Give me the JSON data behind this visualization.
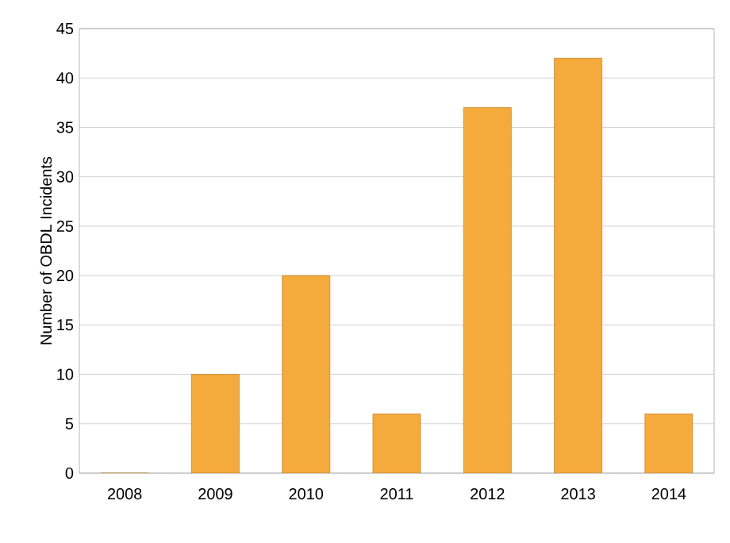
{
  "chart_data": {
    "type": "bar",
    "ylabel": "Number of OBDL Incidents",
    "categories": [
      "2008",
      "2009",
      "2010",
      "2011",
      "2012",
      "2013",
      "2014"
    ],
    "values": [
      0,
      10,
      20,
      6,
      37,
      42,
      6
    ],
    "color": "#f5aa3c",
    "ylim": [
      0,
      45
    ],
    "yticks": [
      0,
      5,
      10,
      15,
      20,
      25,
      30,
      35,
      40,
      45
    ],
    "grid": "y"
  }
}
